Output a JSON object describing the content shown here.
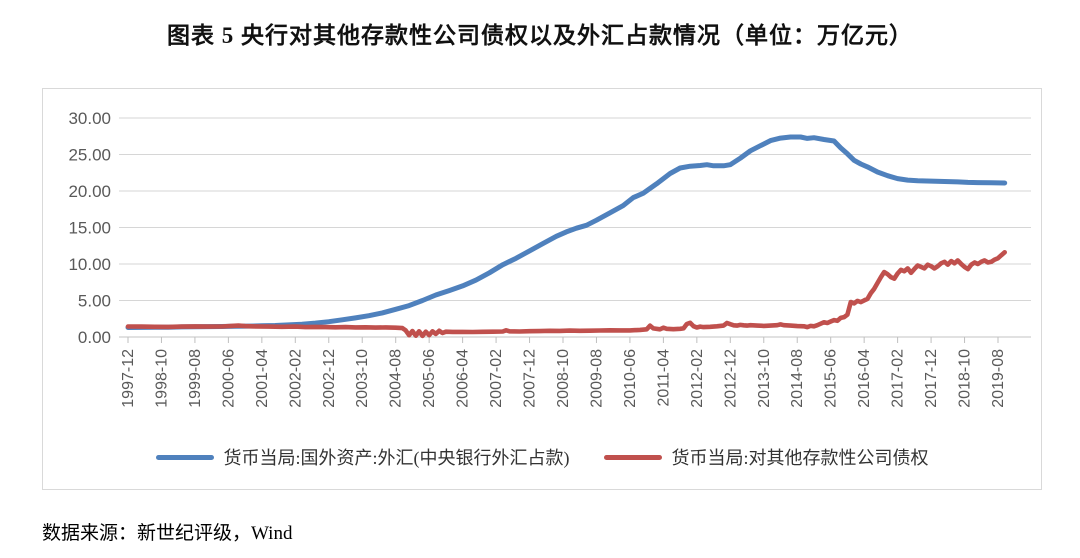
{
  "title": "图表 5  央行对其他存款性公司债权以及外汇占款情况（单位：万亿元）",
  "source": "数据来源：新世纪评级，Wind",
  "colors": {
    "series_blue": "#4F81BD",
    "series_red": "#C0504D",
    "gridline": "#d6d6d6",
    "axis_line": "#c3c3c3",
    "tick": "#bfbfbf",
    "axis_text": "#595959",
    "chart_border": "#d9d9d9"
  },
  "chart_data": {
    "type": "line",
    "title": "图表 5  央行对其他存款性公司债权以及外汇占款情况（单位：万亿元）",
    "xlabel": "",
    "ylabel": "",
    "unit": "万亿元",
    "ylim": [
      0,
      30
    ],
    "grid": "horizontal",
    "legend_position": "bottom",
    "y_ticks": [
      30,
      25,
      20,
      15,
      10,
      5,
      0
    ],
    "y_tick_labels": [
      "30.00",
      "25.00",
      "20.00",
      "15.00",
      "10.00",
      "5.00",
      "0.00"
    ],
    "x_tick_labels": [
      "1997-12",
      "1998-10",
      "1999-08",
      "2000-06",
      "2001-04",
      "2002-02",
      "2002-12",
      "2003-10",
      "2004-08",
      "2005-06",
      "2006-04",
      "2007-02",
      "2007-12",
      "2008-10",
      "2009-08",
      "2010-06",
      "2011-04",
      "2012-02",
      "2012-12",
      "2013-10",
      "2014-08",
      "2015-06",
      "2016-04",
      "2017-02",
      "2017-12",
      "2018-10",
      "2019-08"
    ],
    "x_tick_months": [
      0,
      10,
      20,
      30,
      40,
      50,
      60,
      70,
      80,
      90,
      100,
      110,
      120,
      130,
      140,
      150,
      160,
      170,
      180,
      190,
      200,
      210,
      220,
      230,
      240,
      250,
      260
    ],
    "x_unit": "months since 1997-12",
    "series": [
      {
        "name": "货币当局:国外资产:外汇(中央银行外汇占款)",
        "color": "#4F81BD",
        "points": [
          [
            0,
            1.3
          ],
          [
            4,
            1.32
          ],
          [
            8,
            1.33
          ],
          [
            12,
            1.34
          ],
          [
            16,
            1.38
          ],
          [
            20,
            1.4
          ],
          [
            24,
            1.42
          ],
          [
            28,
            1.44
          ],
          [
            32,
            1.46
          ],
          [
            36,
            1.49
          ],
          [
            40,
            1.53
          ],
          [
            44,
            1.58
          ],
          [
            48,
            1.66
          ],
          [
            52,
            1.76
          ],
          [
            56,
            1.9
          ],
          [
            60,
            2.1
          ],
          [
            64,
            2.35
          ],
          [
            68,
            2.62
          ],
          [
            72,
            2.92
          ],
          [
            76,
            3.3
          ],
          [
            80,
            3.8
          ],
          [
            84,
            4.3
          ],
          [
            88,
            5.0
          ],
          [
            92,
            5.75
          ],
          [
            96,
            6.35
          ],
          [
            100,
            7.0
          ],
          [
            104,
            7.8
          ],
          [
            108,
            8.8
          ],
          [
            112,
            9.9
          ],
          [
            116,
            10.8
          ],
          [
            120,
            11.8
          ],
          [
            124,
            12.8
          ],
          [
            128,
            13.8
          ],
          [
            131,
            14.4
          ],
          [
            134,
            14.9
          ],
          [
            137,
            15.3
          ],
          [
            140,
            16.0
          ],
          [
            144,
            17.0
          ],
          [
            148,
            18.0
          ],
          [
            151,
            19.1
          ],
          [
            154,
            19.7
          ],
          [
            158,
            21.0
          ],
          [
            162,
            22.4
          ],
          [
            165,
            23.15
          ],
          [
            168,
            23.4
          ],
          [
            171,
            23.5
          ],
          [
            173,
            23.6
          ],
          [
            175,
            23.45
          ],
          [
            178,
            23.45
          ],
          [
            180,
            23.6
          ],
          [
            183,
            24.5
          ],
          [
            186,
            25.5
          ],
          [
            189,
            26.2
          ],
          [
            192,
            26.9
          ],
          [
            195,
            27.25
          ],
          [
            198,
            27.4
          ],
          [
            201,
            27.4
          ],
          [
            203,
            27.2
          ],
          [
            205,
            27.3
          ],
          [
            208,
            27.05
          ],
          [
            211,
            26.85
          ],
          [
            213,
            25.9
          ],
          [
            215,
            25.1
          ],
          [
            217,
            24.2
          ],
          [
            219,
            23.7
          ],
          [
            221,
            23.3
          ],
          [
            224,
            22.6
          ],
          [
            227,
            22.1
          ],
          [
            230,
            21.7
          ],
          [
            233,
            21.5
          ],
          [
            236,
            21.4
          ],
          [
            240,
            21.35
          ],
          [
            244,
            21.3
          ],
          [
            248,
            21.25
          ],
          [
            251,
            21.18
          ],
          [
            254,
            21.15
          ],
          [
            258,
            21.12
          ],
          [
            262,
            21.1
          ]
        ]
      },
      {
        "name": "货币当局:对其他存款性公司债权",
        "color": "#C0504D",
        "points": [
          [
            0,
            1.44
          ],
          [
            4,
            1.42
          ],
          [
            8,
            1.4
          ],
          [
            12,
            1.38
          ],
          [
            16,
            1.42
          ],
          [
            20,
            1.45
          ],
          [
            24,
            1.43
          ],
          [
            28,
            1.44
          ],
          [
            31,
            1.52
          ],
          [
            33,
            1.56
          ],
          [
            35,
            1.5
          ],
          [
            38,
            1.45
          ],
          [
            42,
            1.42
          ],
          [
            46,
            1.4
          ],
          [
            50,
            1.42
          ],
          [
            53,
            1.36
          ],
          [
            56,
            1.39
          ],
          [
            59,
            1.35
          ],
          [
            62,
            1.33
          ],
          [
            65,
            1.35
          ],
          [
            68,
            1.31
          ],
          [
            71,
            1.33
          ],
          [
            74,
            1.29
          ],
          [
            77,
            1.31
          ],
          [
            80,
            1.27
          ],
          [
            82,
            1.22
          ],
          [
            83,
            0.9
          ],
          [
            84,
            0.25
          ],
          [
            85,
            0.82
          ],
          [
            86,
            0.18
          ],
          [
            87,
            0.78
          ],
          [
            88,
            0.15
          ],
          [
            89,
            0.72
          ],
          [
            90,
            0.25
          ],
          [
            91,
            0.78
          ],
          [
            92,
            0.42
          ],
          [
            93,
            0.85
          ],
          [
            94,
            0.55
          ],
          [
            95,
            0.72
          ],
          [
            97,
            0.7
          ],
          [
            100,
            0.7
          ],
          [
            103,
            0.68
          ],
          [
            106,
            0.71
          ],
          [
            109,
            0.72
          ],
          [
            112,
            0.75
          ],
          [
            113,
            0.92
          ],
          [
            114,
            0.78
          ],
          [
            117,
            0.76
          ],
          [
            120,
            0.8
          ],
          [
            123,
            0.81
          ],
          [
            126,
            0.85
          ],
          [
            129,
            0.83
          ],
          [
            132,
            0.88
          ],
          [
            135,
            0.85
          ],
          [
            138,
            0.86
          ],
          [
            141,
            0.89
          ],
          [
            144,
            0.92
          ],
          [
            147,
            0.9
          ],
          [
            150,
            0.91
          ],
          [
            153,
            0.97
          ],
          [
            155,
            1.05
          ],
          [
            156,
            1.55
          ],
          [
            157,
            1.18
          ],
          [
            159,
            1.06
          ],
          [
            160,
            1.28
          ],
          [
            161,
            1.12
          ],
          [
            163,
            1.07
          ],
          [
            165,
            1.12
          ],
          [
            166,
            1.18
          ],
          [
            167,
            1.78
          ],
          [
            168,
            1.95
          ],
          [
            169,
            1.48
          ],
          [
            170,
            1.3
          ],
          [
            171,
            1.42
          ],
          [
            172,
            1.35
          ],
          [
            174,
            1.4
          ],
          [
            176,
            1.46
          ],
          [
            178,
            1.56
          ],
          [
            179,
            1.92
          ],
          [
            180,
            1.76
          ],
          [
            181,
            1.6
          ],
          [
            182,
            1.56
          ],
          [
            183,
            1.66
          ],
          [
            184,
            1.6
          ],
          [
            185,
            1.56
          ],
          [
            186,
            1.62
          ],
          [
            188,
            1.56
          ],
          [
            190,
            1.52
          ],
          [
            192,
            1.56
          ],
          [
            194,
            1.62
          ],
          [
            195,
            1.72
          ],
          [
            196,
            1.62
          ],
          [
            198,
            1.56
          ],
          [
            200,
            1.5
          ],
          [
            202,
            1.46
          ],
          [
            203,
            1.36
          ],
          [
            204,
            1.52
          ],
          [
            205,
            1.46
          ],
          [
            206,
            1.62
          ],
          [
            207,
            1.82
          ],
          [
            208,
            2.02
          ],
          [
            209,
            1.92
          ],
          [
            210,
            2.12
          ],
          [
            211,
            2.32
          ],
          [
            212,
            2.22
          ],
          [
            213,
            2.62
          ],
          [
            214,
            2.72
          ],
          [
            215,
            3.05
          ],
          [
            216,
            4.8
          ],
          [
            217,
            4.6
          ],
          [
            218,
            4.95
          ],
          [
            219,
            4.78
          ],
          [
            220,
            5.02
          ],
          [
            221,
            5.22
          ],
          [
            222,
            6.0
          ],
          [
            223,
            6.6
          ],
          [
            224,
            7.4
          ],
          [
            225,
            8.2
          ],
          [
            226,
            8.9
          ],
          [
            227,
            8.6
          ],
          [
            228,
            8.2
          ],
          [
            229,
            8.0
          ],
          [
            230,
            8.7
          ],
          [
            231,
            9.2
          ],
          [
            232,
            9.0
          ],
          [
            233,
            9.4
          ],
          [
            234,
            8.8
          ],
          [
            235,
            9.3
          ],
          [
            236,
            9.8
          ],
          [
            237,
            9.6
          ],
          [
            238,
            9.4
          ],
          [
            239,
            9.9
          ],
          [
            240,
            9.7
          ],
          [
            241,
            9.4
          ],
          [
            242,
            9.7
          ],
          [
            243,
            10.1
          ],
          [
            244,
            10.3
          ],
          [
            245,
            9.9
          ],
          [
            246,
            10.4
          ],
          [
            247,
            10.1
          ],
          [
            248,
            10.5
          ],
          [
            249,
            10.0
          ],
          [
            250,
            9.6
          ],
          [
            251,
            9.3
          ],
          [
            252,
            9.9
          ],
          [
            253,
            10.2
          ],
          [
            254,
            10.0
          ],
          [
            255,
            10.3
          ],
          [
            256,
            10.5
          ],
          [
            257,
            10.2
          ],
          [
            258,
            10.3
          ],
          [
            259,
            10.6
          ],
          [
            260,
            10.8
          ],
          [
            261,
            11.2
          ],
          [
            262,
            11.6
          ]
        ]
      }
    ]
  }
}
